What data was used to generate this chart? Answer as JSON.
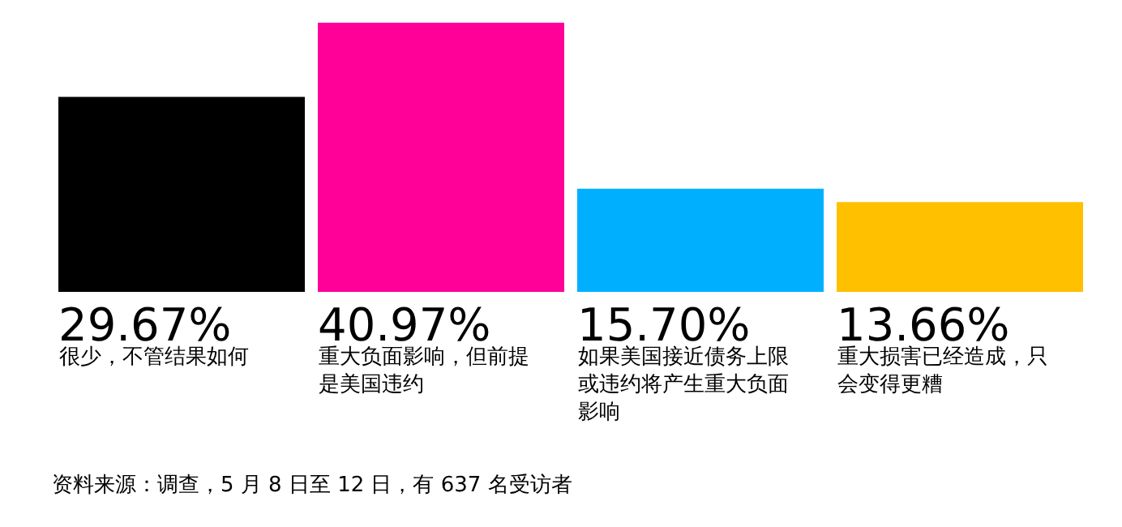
{
  "chart_data": {
    "type": "bar",
    "categories": [
      "很少，不管结果如何",
      "重大负面影响，但前提是美国违约",
      "如果美国接近债务上限或违约将产生重大负面影响",
      "重大损害已经造成，只会变得更糟"
    ],
    "values": [
      29.67,
      40.97,
      15.7,
      13.66
    ],
    "value_labels": [
      "29.67%",
      "40.97%",
      "15.70%",
      "13.66%"
    ],
    "colors": [
      "#000000",
      "#ff0099",
      "#00b0ff",
      "#ffc000"
    ],
    "annotations": [
      "资料来源：调查，5 月 8 日至 12 日，有 637 名受访者"
    ]
  }
}
